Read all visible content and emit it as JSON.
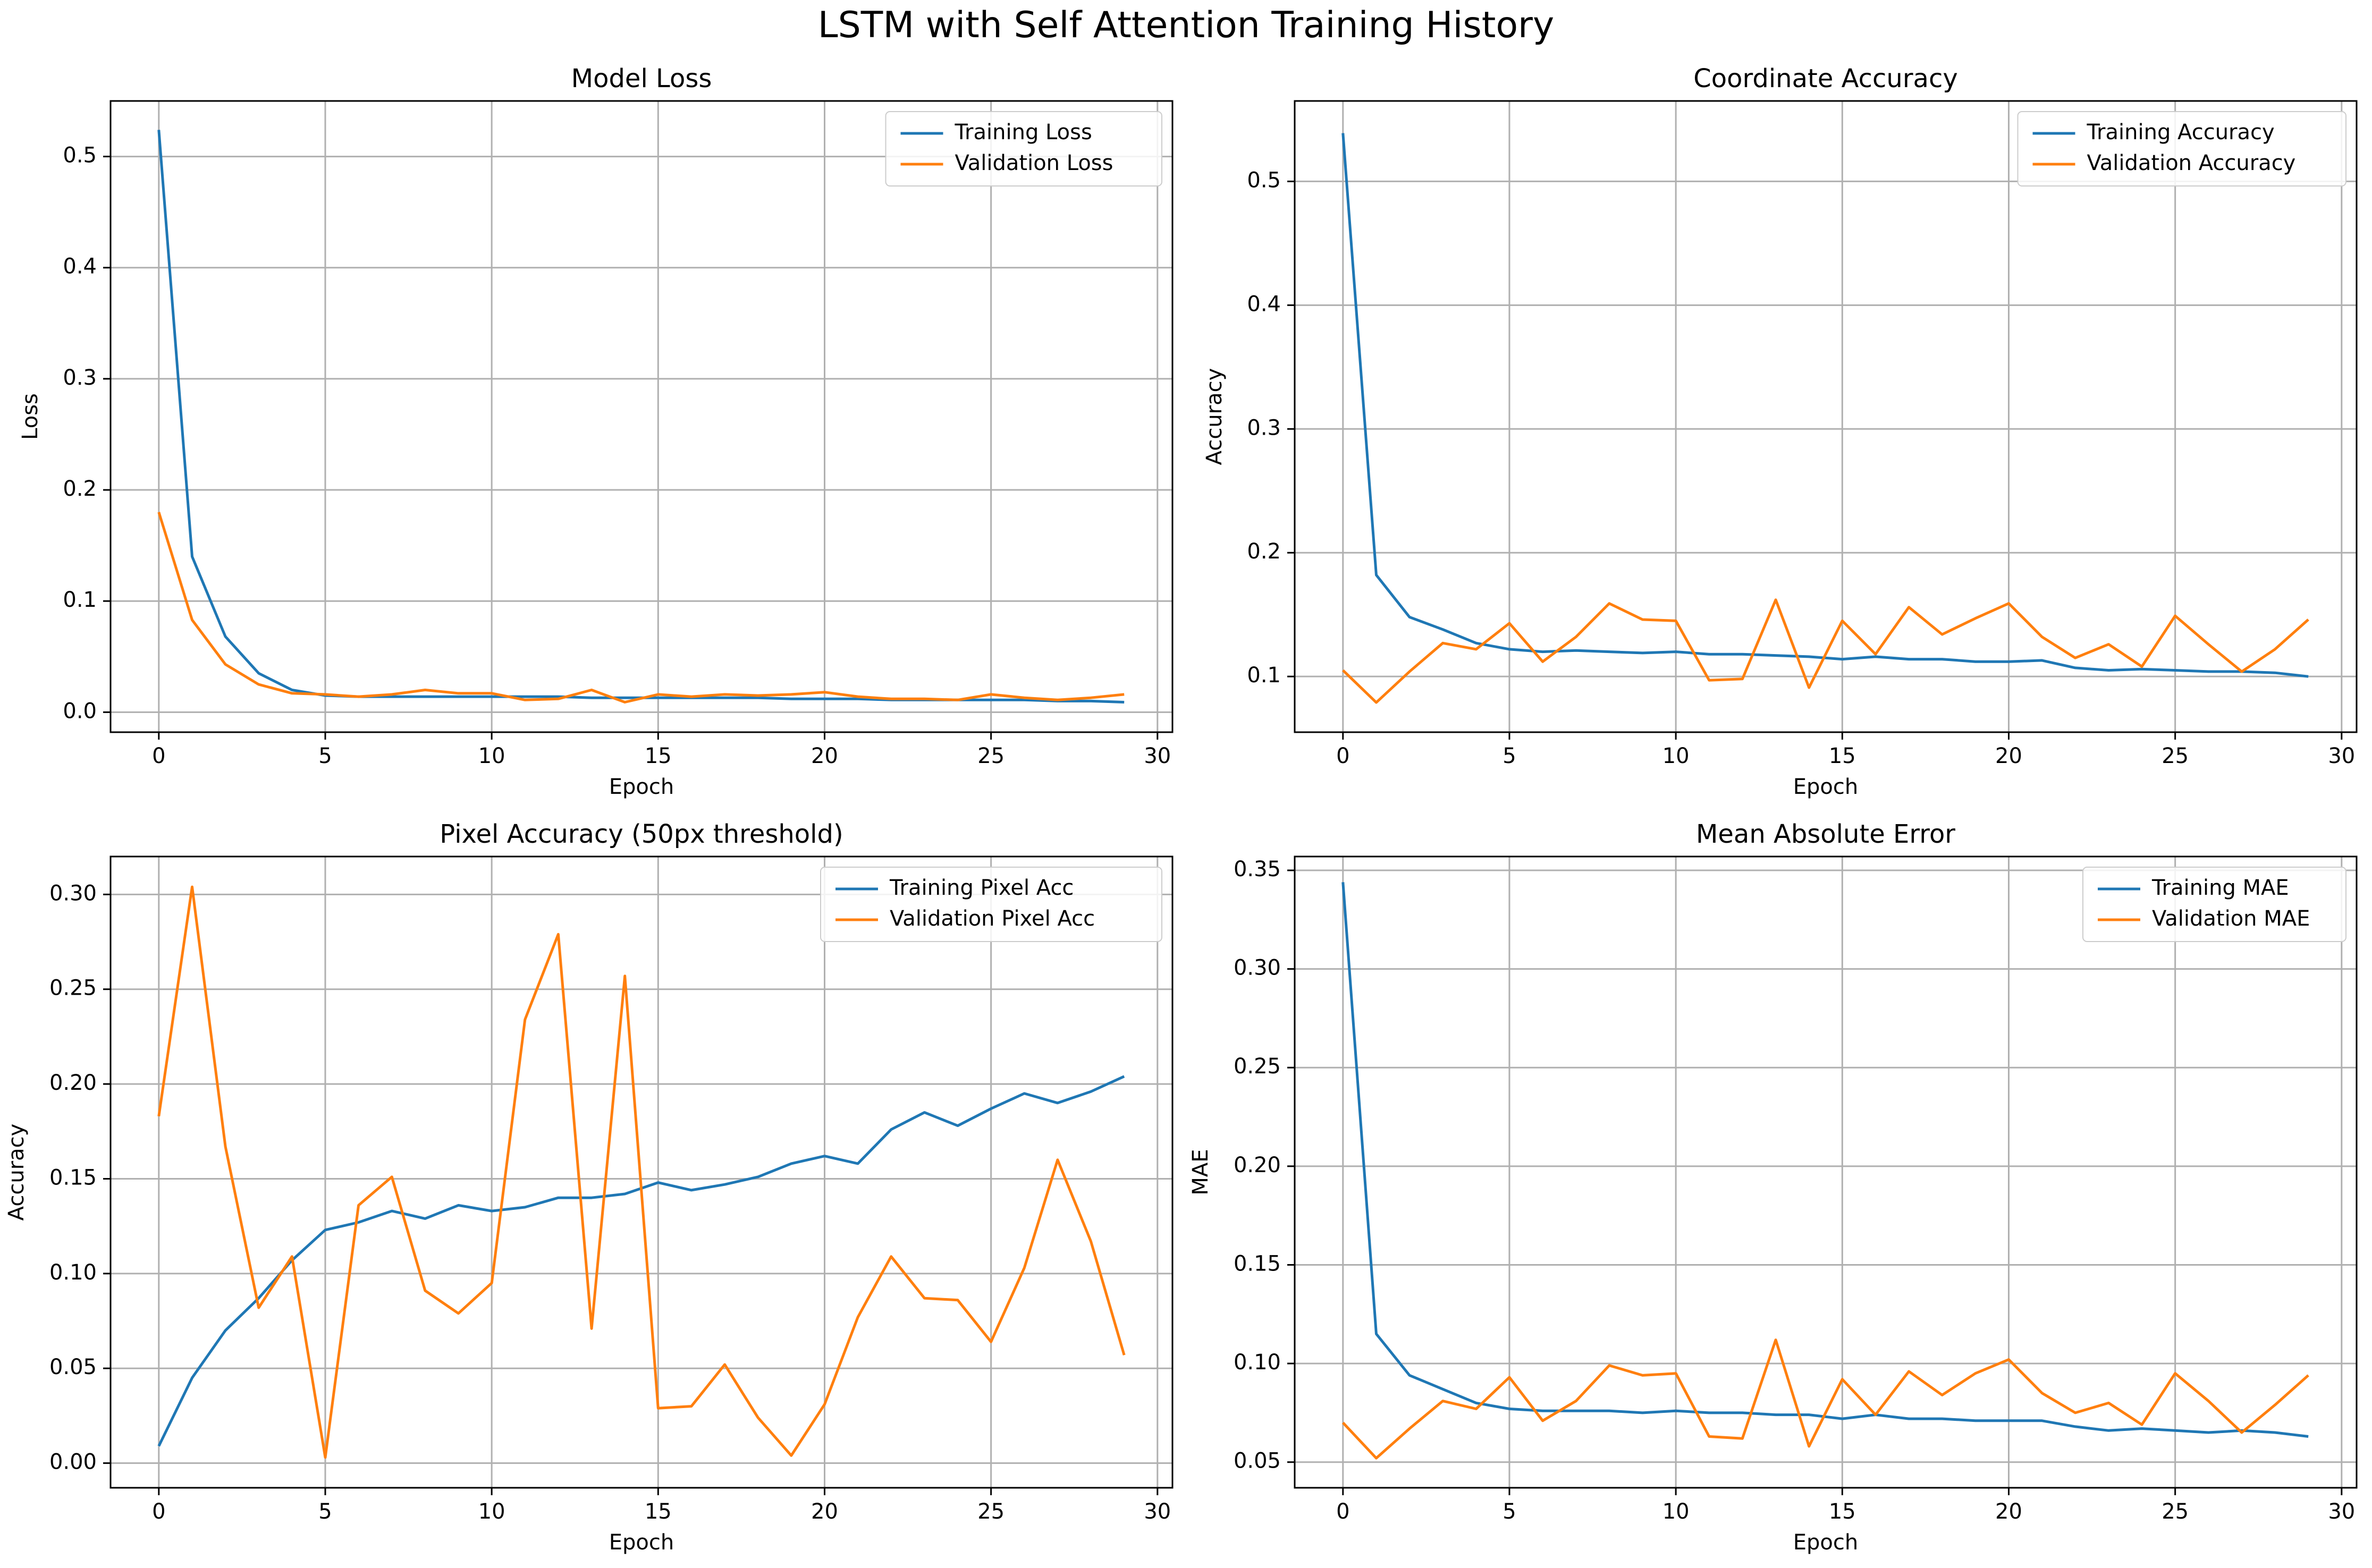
{
  "figure": {
    "title": "LSTM with Self Attention Training History"
  },
  "colors": {
    "training": "#1f77b4",
    "validation": "#ff7f0e",
    "grid": "#b0b0b0",
    "axis": "#000000"
  },
  "chart_data": [
    {
      "type": "line",
      "title": "Model Loss",
      "xlabel": "Epoch",
      "ylabel": "Loss",
      "grid": true,
      "legend_position": "top-right",
      "xlim": [
        -1.45,
        30.45
      ],
      "ylim": [
        -0.018,
        0.55
      ],
      "xticks": [
        0,
        5,
        10,
        15,
        20,
        25,
        30
      ],
      "xtick_labels": [
        "0",
        "5",
        "10",
        "15",
        "20",
        "25",
        "30"
      ],
      "yticks": [
        0.0,
        0.1,
        0.2,
        0.3,
        0.4,
        0.5
      ],
      "ytick_labels": [
        "0.0",
        "0.1",
        "0.2",
        "0.3",
        "0.4",
        "0.5"
      ],
      "x": [
        0,
        1,
        2,
        3,
        4,
        5,
        6,
        7,
        8,
        9,
        10,
        11,
        12,
        13,
        14,
        15,
        16,
        17,
        18,
        19,
        20,
        21,
        22,
        23,
        24,
        25,
        26,
        27,
        28,
        29
      ],
      "series": [
        {
          "name": "Training Loss",
          "color": "#1f77b4",
          "values": [
            0.524,
            0.14,
            0.068,
            0.035,
            0.02,
            0.015,
            0.014,
            0.014,
            0.014,
            0.014,
            0.014,
            0.014,
            0.014,
            0.013,
            0.013,
            0.013,
            0.013,
            0.013,
            0.013,
            0.012,
            0.012,
            0.012,
            0.011,
            0.011,
            0.011,
            0.011,
            0.011,
            0.01,
            0.01,
            0.009
          ]
        },
        {
          "name": "Validation Loss",
          "color": "#ff7f0e",
          "values": [
            0.18,
            0.083,
            0.043,
            0.025,
            0.017,
            0.016,
            0.014,
            0.016,
            0.02,
            0.017,
            0.017,
            0.011,
            0.012,
            0.02,
            0.009,
            0.016,
            0.014,
            0.016,
            0.015,
            0.016,
            0.018,
            0.014,
            0.012,
            0.012,
            0.011,
            0.016,
            0.013,
            0.011,
            0.013,
            0.016
          ]
        }
      ]
    },
    {
      "type": "line",
      "title": "Coordinate Accuracy",
      "xlabel": "Epoch",
      "ylabel": "Accuracy",
      "grid": true,
      "legend_position": "top-right",
      "xlim": [
        -1.45,
        30.45
      ],
      "ylim": [
        0.055,
        0.565
      ],
      "xticks": [
        0,
        5,
        10,
        15,
        20,
        25,
        30
      ],
      "xtick_labels": [
        "0",
        "5",
        "10",
        "15",
        "20",
        "25",
        "30"
      ],
      "yticks": [
        0.1,
        0.2,
        0.3,
        0.4,
        0.5
      ],
      "ytick_labels": [
        "0.1",
        "0.2",
        "0.3",
        "0.4",
        "0.5"
      ],
      "x": [
        0,
        1,
        2,
        3,
        4,
        5,
        6,
        7,
        8,
        9,
        10,
        11,
        12,
        13,
        14,
        15,
        16,
        17,
        18,
        19,
        20,
        21,
        22,
        23,
        24,
        25,
        26,
        27,
        28,
        29
      ],
      "series": [
        {
          "name": "Training Accuracy",
          "color": "#1f77b4",
          "values": [
            0.539,
            0.182,
            0.148,
            0.138,
            0.127,
            0.122,
            0.12,
            0.121,
            0.12,
            0.119,
            0.12,
            0.118,
            0.118,
            0.117,
            0.116,
            0.114,
            0.116,
            0.114,
            0.114,
            0.112,
            0.112,
            0.113,
            0.107,
            0.105,
            0.106,
            0.105,
            0.104,
            0.104,
            0.103,
            0.1
          ]
        },
        {
          "name": "Validation Accuracy",
          "color": "#ff7f0e",
          "values": [
            0.105,
            0.079,
            0.104,
            0.127,
            0.122,
            0.143,
            0.112,
            0.132,
            0.159,
            0.146,
            0.145,
            0.097,
            0.098,
            0.162,
            0.091,
            0.145,
            0.118,
            0.156,
            0.134,
            0.147,
            0.159,
            0.132,
            0.115,
            0.126,
            0.108,
            0.149,
            0.126,
            0.104,
            0.122,
            0.146
          ]
        }
      ]
    },
    {
      "type": "line",
      "title": "Pixel Accuracy (50px threshold)",
      "xlabel": "Epoch",
      "ylabel": "Accuracy",
      "grid": true,
      "legend_position": "top-right",
      "xlim": [
        -1.45,
        30.45
      ],
      "ylim": [
        -0.013,
        0.32
      ],
      "xticks": [
        0,
        5,
        10,
        15,
        20,
        25,
        30
      ],
      "xtick_labels": [
        "0",
        "5",
        "10",
        "15",
        "20",
        "25",
        "30"
      ],
      "yticks": [
        0.0,
        0.05,
        0.1,
        0.15,
        0.2,
        0.25,
        0.3
      ],
      "ytick_labels": [
        "0.00",
        "0.05",
        "0.10",
        "0.15",
        "0.20",
        "0.25",
        "0.30"
      ],
      "x": [
        0,
        1,
        2,
        3,
        4,
        5,
        6,
        7,
        8,
        9,
        10,
        11,
        12,
        13,
        14,
        15,
        16,
        17,
        18,
        19,
        20,
        21,
        22,
        23,
        24,
        25,
        26,
        27,
        28,
        29
      ],
      "series": [
        {
          "name": "Training Pixel Acc",
          "color": "#1f77b4",
          "values": [
            0.009,
            0.045,
            0.07,
            0.087,
            0.107,
            0.123,
            0.127,
            0.133,
            0.129,
            0.136,
            0.133,
            0.135,
            0.14,
            0.14,
            0.142,
            0.148,
            0.144,
            0.147,
            0.151,
            0.158,
            0.162,
            0.158,
            0.176,
            0.185,
            0.178,
            0.187,
            0.195,
            0.19,
            0.196,
            0.204
          ]
        },
        {
          "name": "Validation Pixel Acc",
          "color": "#ff7f0e",
          "values": [
            0.183,
            0.304,
            0.167,
            0.082,
            0.109,
            0.003,
            0.136,
            0.151,
            0.091,
            0.079,
            0.095,
            0.234,
            0.279,
            0.071,
            0.257,
            0.029,
            0.03,
            0.052,
            0.024,
            0.004,
            0.031,
            0.077,
            0.109,
            0.087,
            0.086,
            0.064,
            0.103,
            0.16,
            0.117,
            0.057
          ]
        }
      ]
    },
    {
      "type": "line",
      "title": "Mean Absolute Error",
      "xlabel": "Epoch",
      "ylabel": "MAE",
      "grid": true,
      "legend_position": "top-right",
      "xlim": [
        -1.45,
        30.45
      ],
      "ylim": [
        0.037,
        0.357
      ],
      "xticks": [
        0,
        5,
        10,
        15,
        20,
        25,
        30
      ],
      "xtick_labels": [
        "0",
        "5",
        "10",
        "15",
        "20",
        "25",
        "30"
      ],
      "yticks": [
        0.05,
        0.1,
        0.15,
        0.2,
        0.25,
        0.3,
        0.35
      ],
      "ytick_labels": [
        "0.05",
        "0.10",
        "0.15",
        "0.20",
        "0.25",
        "0.30",
        "0.35"
      ],
      "x": [
        0,
        1,
        2,
        3,
        4,
        5,
        6,
        7,
        8,
        9,
        10,
        11,
        12,
        13,
        14,
        15,
        16,
        17,
        18,
        19,
        20,
        21,
        22,
        23,
        24,
        25,
        26,
        27,
        28,
        29
      ],
      "series": [
        {
          "name": "Training MAE",
          "color": "#1f77b4",
          "values": [
            0.344,
            0.115,
            0.094,
            0.087,
            0.08,
            0.077,
            0.076,
            0.076,
            0.076,
            0.075,
            0.076,
            0.075,
            0.075,
            0.074,
            0.074,
            0.072,
            0.074,
            0.072,
            0.072,
            0.071,
            0.071,
            0.071,
            0.068,
            0.066,
            0.067,
            0.066,
            0.065,
            0.066,
            0.065,
            0.063
          ]
        },
        {
          "name": "Validation MAE",
          "color": "#ff7f0e",
          "values": [
            0.07,
            0.052,
            0.067,
            0.081,
            0.077,
            0.093,
            0.071,
            0.081,
            0.099,
            0.094,
            0.095,
            0.063,
            0.062,
            0.112,
            0.058,
            0.092,
            0.074,
            0.096,
            0.084,
            0.095,
            0.102,
            0.085,
            0.075,
            0.08,
            0.069,
            0.095,
            0.081,
            0.065,
            0.079,
            0.094
          ]
        }
      ]
    }
  ]
}
